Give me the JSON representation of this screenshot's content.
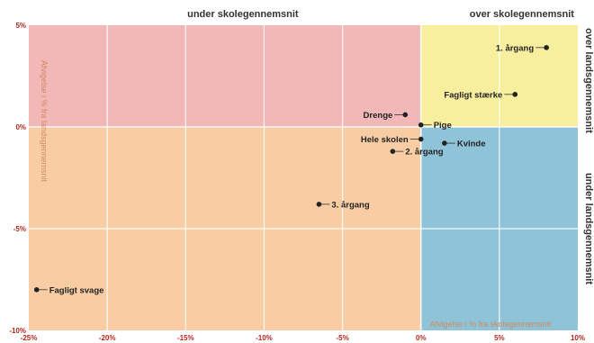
{
  "chart_data": {
    "type": "scatter",
    "title": "",
    "xlim": [
      -25,
      10
    ],
    "ylim": [
      -10,
      5
    ],
    "x_ticks": [
      "-25%",
      "-20%",
      "-15%",
      "-10%",
      "-5%",
      "0%",
      "5%",
      "10%"
    ],
    "y_ticks": [
      "5%",
      "0%",
      "-5%",
      "-10%"
    ],
    "top_labels": {
      "left": "under skolegennemsnit",
      "right": "over skolegennemsnit"
    },
    "right_labels": {
      "top": "over landsgennemsnit",
      "bottom": "under landsgennemsnit"
    },
    "x_axis_note": "Afvigelse i % fra skolegennemsnit",
    "y_axis_note": "Afvigelse i % fra landsgennemsnit",
    "quadrant_colors": {
      "top_left": "#f2b8b8",
      "top_right": "#f8ef9e",
      "bottom_left": "#f8cda4",
      "bottom_right": "#8fc3d8"
    },
    "points": [
      {
        "label": "1. årgang",
        "x": 8,
        "y": 3.9,
        "label_side": "left"
      },
      {
        "label": "Fagligt stærke",
        "x": 6,
        "y": 1.6,
        "label_side": "left"
      },
      {
        "label": "Drenge",
        "x": -1,
        "y": 0.6,
        "label_side": "left"
      },
      {
        "label": "Pige",
        "x": 0,
        "y": 0.1,
        "label_side": "right"
      },
      {
        "label": "Hele skolen",
        "x": 0,
        "y": -0.6,
        "label_side": "left"
      },
      {
        "label": "Kvinde",
        "x": 1.5,
        "y": -0.8,
        "label_side": "right"
      },
      {
        "label": "2. årgang",
        "x": -1.8,
        "y": -1.2,
        "label_side": "right"
      },
      {
        "label": "3. årgang",
        "x": -6.5,
        "y": -3.8,
        "label_side": "right"
      },
      {
        "label": "Fagligt svage",
        "x": -24.5,
        "y": -8,
        "label_side": "right"
      }
    ]
  }
}
